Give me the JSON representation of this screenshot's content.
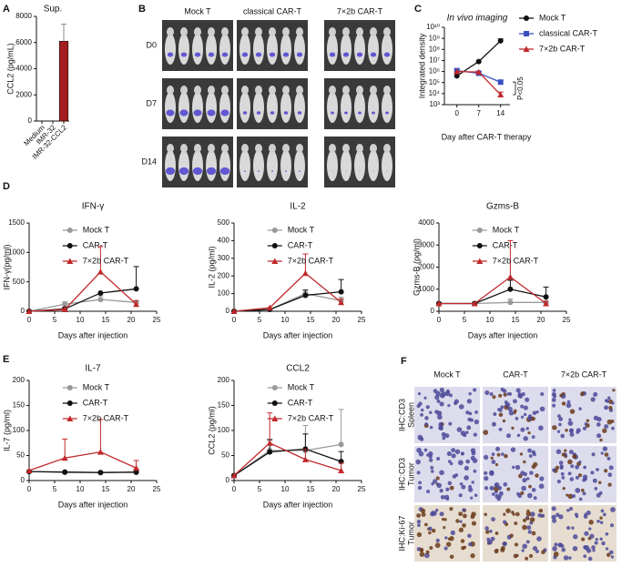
{
  "chart_data": [
    {
      "panel": "A",
      "type": "bar",
      "title": "Sup.",
      "y_label": "CCL2 (pg/mL)",
      "categories": [
        "Medium",
        "IMR-32",
        "IMR-32-CCL2"
      ],
      "values": [
        0,
        0,
        6100
      ],
      "errors": [
        null,
        null,
        1300
      ],
      "color": "#a31f1f",
      "ylim": [
        0,
        8000
      ],
      "yticks": [
        0,
        2000,
        4000,
        6000,
        8000
      ]
    },
    {
      "panel": "C",
      "type": "line",
      "title": "In vivo imaging",
      "x_label": "Day after CAR-T therapy",
      "y_label": "Integrated density",
      "annotation": "P<0.05",
      "x": [
        0,
        7,
        14
      ],
      "xlim": [
        -4,
        17
      ],
      "xticks": [
        0,
        7,
        14
      ],
      "yscale": "log",
      "ylim": [
        1000,
        10000000000
      ],
      "yticks": [
        {
          "value": 1000,
          "label": "10³"
        },
        {
          "value": 10000,
          "label": "10⁴"
        },
        {
          "value": 100000,
          "label": "10⁵"
        },
        {
          "value": 1000000,
          "label": "10⁶"
        },
        {
          "value": 10000000,
          "label": "10⁷"
        },
        {
          "value": 100000000,
          "label": "10⁸"
        },
        {
          "value": 1000000000,
          "label": "10⁹"
        },
        {
          "value": 10000000000,
          "label": "10¹⁰"
        }
      ],
      "legend": "right",
      "series": [
        {
          "name": "Mock T",
          "color": "#111111",
          "marker": "circle",
          "values": [
            400000,
            8000000,
            600000000
          ],
          "errors": [
            null,
            null,
            300000000
          ]
        },
        {
          "name": "classical CAR-T",
          "color": "#3a4fc0",
          "marker": "square",
          "values": [
            1200000,
            700000,
            110000
          ],
          "errors": [
            null,
            400000,
            50000
          ]
        },
        {
          "name": "7×2b CAR-T",
          "color": "#c0282b",
          "marker": "triangle",
          "values": [
            1000000,
            900000,
            8000
          ],
          "errors": [
            null,
            null,
            6000
          ]
        }
      ]
    },
    {
      "panel": "D",
      "type": "line",
      "title": "IFN-γ",
      "x_label": "Days after injection",
      "y_label": "IFN-γ(pg/ml)",
      "x": [
        0,
        7,
        14,
        21
      ],
      "xlim": [
        0,
        25
      ],
      "xticks": [
        0,
        5,
        10,
        15,
        20,
        25
      ],
      "ylim": [
        0,
        1500
      ],
      "yticks": [
        0,
        500,
        1000,
        1500
      ],
      "legend": "upper right",
      "series": [
        {
          "name": "Mock T",
          "color": "#999999",
          "marker": "circle",
          "values": [
            0,
            120,
            200,
            150
          ],
          "errors": [
            null,
            40,
            60,
            null
          ]
        },
        {
          "name": "CAR-T",
          "color": "#111111",
          "marker": "circle",
          "values": [
            0,
            40,
            310,
            380
          ],
          "errors": [
            null,
            30,
            null,
            380
          ]
        },
        {
          "name": "7×2b CAR-T",
          "color": "#c0282b",
          "marker": "triangle",
          "values": [
            0,
            30,
            670,
            120
          ],
          "errors": [
            null,
            20,
            430,
            60
          ]
        }
      ]
    },
    {
      "type": "line",
      "title": "IL-2",
      "x_label": "Days after injection",
      "y_label": "IL-2 (pg/ml)",
      "x": [
        0,
        7,
        14,
        21
      ],
      "xlim": [
        0,
        25
      ],
      "xticks": [
        0,
        5,
        10,
        15,
        20,
        25
      ],
      "ylim": [
        0,
        500
      ],
      "yticks": [
        0,
        100,
        200,
        300,
        400,
        500
      ],
      "legend": "upper right",
      "series": [
        {
          "name": "Mock T",
          "color": "#999999",
          "marker": "circle",
          "values": [
            0,
            10,
            100,
            60
          ],
          "errors": [
            null,
            null,
            20,
            20
          ]
        },
        {
          "name": "CAR-T",
          "color": "#111111",
          "marker": "circle",
          "values": [
            0,
            10,
            90,
            110
          ],
          "errors": [
            null,
            null,
            30,
            70
          ]
        },
        {
          "name": "7×2b CAR-T",
          "color": "#c0282b",
          "marker": "triangle",
          "values": [
            0,
            20,
            215,
            50
          ],
          "errors": [
            null,
            null,
            110,
            20
          ]
        }
      ]
    },
    {
      "type": "line",
      "title": "Gzms-B",
      "x_label": "Days after injection",
      "y_label": "Gzms-B (pg/ml)",
      "x": [
        0,
        7,
        14,
        21
      ],
      "xlim": [
        0,
        25
      ],
      "xticks": [
        0,
        5,
        10,
        15,
        20,
        25
      ],
      "ylim": [
        0,
        4000
      ],
      "yticks": [
        0,
        1000,
        2000,
        3000,
        4000
      ],
      "legend": "upper right",
      "series": [
        {
          "name": "Mock T",
          "color": "#999999",
          "marker": "circle",
          "values": [
            350,
            350,
            400,
            400
          ],
          "errors": [
            null,
            null,
            150,
            null
          ]
        },
        {
          "name": "CAR-T",
          "color": "#111111",
          "marker": "circle",
          "values": [
            350,
            350,
            1000,
            650
          ],
          "errors": [
            null,
            null,
            400,
            450
          ]
        },
        {
          "name": "7×2b CAR-T",
          "color": "#c0282b",
          "marker": "triangle",
          "values": [
            350,
            350,
            1550,
            350
          ],
          "errors": [
            null,
            null,
            1650,
            100
          ]
        }
      ]
    },
    {
      "panel": "E",
      "type": "line",
      "title": "IL-7",
      "x_label": "Days after injection",
      "y_label": "IL-7 (pg/ml)",
      "x": [
        0,
        7,
        14,
        21
      ],
      "xlim": [
        0,
        25
      ],
      "xticks": [
        0,
        5,
        10,
        15,
        20,
        25
      ],
      "ylim": [
        0,
        200
      ],
      "yticks": [
        0,
        50,
        100,
        150,
        200
      ],
      "legend": "upper right",
      "series": [
        {
          "name": "Mock T",
          "color": "#999999",
          "marker": "circle",
          "values": [
            18,
            16,
            16,
            16
          ],
          "errors": [
            null,
            null,
            null,
            null
          ]
        },
        {
          "name": "CAR-T",
          "color": "#111111",
          "marker": "circle",
          "values": [
            18,
            17,
            16,
            17
          ],
          "errors": [
            null,
            null,
            null,
            5
          ]
        },
        {
          "name": "7×2b CAR-T",
          "color": "#c0282b",
          "marker": "triangle",
          "values": [
            20,
            45,
            57,
            25
          ],
          "errors": [
            null,
            38,
            65,
            15
          ]
        }
      ]
    },
    {
      "type": "line",
      "title": "CCL2",
      "x_label": "Days after injection",
      "y_label": "CCL2 (pg/ml)",
      "x": [
        0,
        7,
        14,
        21
      ],
      "xlim": [
        0,
        25
      ],
      "xticks": [
        0,
        5,
        10,
        15,
        20,
        25
      ],
      "ylim": [
        0,
        200
      ],
      "yticks": [
        0,
        50,
        100,
        150,
        200
      ],
      "legend": "upper right",
      "series": [
        {
          "name": "Mock T",
          "color": "#999999",
          "marker": "circle",
          "values": [
            10,
            60,
            60,
            72
          ],
          "errors": [
            null,
            20,
            50,
            70
          ]
        },
        {
          "name": "CAR-T",
          "color": "#111111",
          "marker": "circle",
          "values": [
            10,
            57,
            63,
            38
          ],
          "errors": [
            null,
            25,
            30,
            20
          ]
        },
        {
          "name": "7×2b CAR-T",
          "color": "#c0282b",
          "marker": "triangle",
          "values": [
            10,
            75,
            42,
            20
          ],
          "errors": [
            null,
            60,
            20,
            15
          ]
        }
      ]
    }
  ],
  "imaging": {
    "panel": "B",
    "columns": [
      "Mock T",
      "classical CAR-T",
      "7×2b CAR-T"
    ],
    "rows": [
      "D0",
      "D7",
      "D14"
    ]
  },
  "ihc": {
    "panel": "F",
    "columns": [
      "Mock T",
      "CAR-T",
      "7×2b CAR-T"
    ],
    "rows": [
      [
        "IHC:CD3",
        "Spleen"
      ],
      [
        "IHC:CD3",
        "Tumor"
      ],
      [
        "IHC:Ki-67",
        "Tumor"
      ]
    ]
  }
}
